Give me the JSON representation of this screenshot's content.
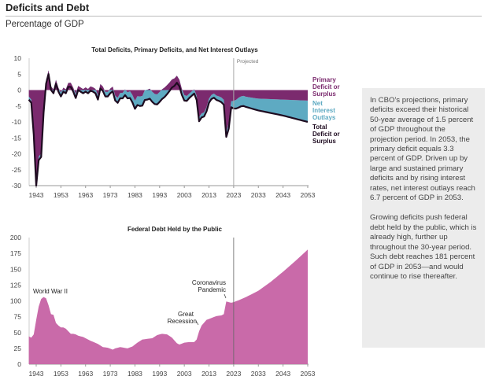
{
  "header": {
    "title": "Deficits and Debt",
    "subtitle": "Percentage of GDP"
  },
  "panel": {
    "paragraphs": [
      "In CBO's projections, primary deficits exceed their historical 50-year average of 1.5 percent of GDP throughout the projection period. In 2053, the primary deficit equals 3.3 percent of GDP. Driven up by large and sustained primary deficits and by rising interest rates, net interest outlays reach 6.7 percent of GDP in 2053.",
      "Growing deficits push federal debt held by the public, which is already high, further up throughout the 30-year period. Such debt reaches 181 percent of GDP in 2053—and would continue to rise thereafter."
    ]
  },
  "colors": {
    "primary": "#7b2a6e",
    "interest": "#5eaac2",
    "total": "#1e0b20",
    "debt": "#c96aa9"
  },
  "chart_data": [
    {
      "type": "area",
      "title": "Total Deficits, Primary Deficits, and Net Interest Outlays",
      "xlabel": "",
      "ylabel": "",
      "xlim": [
        1940,
        2053
      ],
      "ylim": [
        -30,
        10
      ],
      "xticks": [
        "1943",
        "1953",
        "1963",
        "1973",
        "1983",
        "1993",
        "2003",
        "2013",
        "2023",
        "2033",
        "2043",
        "2053"
      ],
      "yticks": [
        "10",
        "5",
        "0",
        "-5",
        "-10",
        "-15",
        "-20",
        "-25",
        "-30"
      ],
      "annotation": {
        "label": "Projected",
        "x": 2023
      },
      "legend": [
        "Primary Deficit or Surplus",
        "Net Interest Outlays",
        "Total Deficit or Surplus"
      ],
      "series": [
        {
          "name": "Total Deficit or Surplus",
          "x": [
            1940,
            1941,
            1942,
            1943,
            1944,
            1945,
            1946,
            1947,
            1948,
            1949,
            1950,
            1951,
            1952,
            1953,
            1954,
            1955,
            1956,
            1957,
            1958,
            1959,
            1960,
            1961,
            1962,
            1963,
            1964,
            1965,
            1966,
            1967,
            1968,
            1969,
            1970,
            1971,
            1972,
            1973,
            1974,
            1975,
            1976,
            1977,
            1978,
            1979,
            1980,
            1981,
            1982,
            1983,
            1984,
            1985,
            1986,
            1987,
            1988,
            1989,
            1990,
            1991,
            1992,
            1993,
            1994,
            1995,
            1996,
            1997,
            1998,
            1999,
            2000,
            2001,
            2002,
            2003,
            2004,
            2005,
            2006,
            2007,
            2008,
            2009,
            2010,
            2011,
            2012,
            2013,
            2014,
            2015,
            2016,
            2017,
            2018,
            2019,
            2020,
            2021,
            2022,
            2023,
            2024,
            2025,
            2026,
            2027,
            2028,
            2033,
            2043,
            2053
          ],
          "y": [
            -3,
            -4,
            -14,
            -30,
            -22,
            -21,
            -7,
            2,
            5,
            0,
            -1,
            2,
            -0.5,
            -2,
            -0.5,
            -1,
            1,
            1,
            -0.5,
            -2.5,
            0,
            -0.5,
            -1,
            -0.5,
            -1,
            -0.2,
            -0.5,
            -1,
            -3,
            0.5,
            -0.3,
            -2,
            -2,
            -1,
            -0.4,
            -3.3,
            -4,
            -2.6,
            -2.6,
            -1.6,
            -2.6,
            -2.5,
            -3.9,
            -5.9,
            -4.7,
            -5,
            -4.9,
            -3.1,
            -3,
            -2.7,
            -3.7,
            -4.4,
            -4.5,
            -3.7,
            -2.8,
            -2.2,
            -1.3,
            -0.3,
            0.8,
            1.3,
            2.3,
            1.2,
            -1.5,
            -3.3,
            -3.4,
            -2.5,
            -1.8,
            -1.1,
            -3.1,
            -9.8,
            -8.6,
            -8.3,
            -6.7,
            -4,
            -2.8,
            -2.4,
            -3.1,
            -3.4,
            -3.8,
            -4.6,
            -14.7,
            -12.1,
            -5.4,
            -5.8,
            -5.8,
            -5.5,
            -5.1,
            -5,
            -5.3,
            -6.4,
            -8,
            -10
          ]
        },
        {
          "name": "Net Interest Outlays",
          "x": [
            1940,
            1950,
            1960,
            1970,
            1975,
            1980,
            1985,
            1991,
            1995,
            2000,
            2005,
            2010,
            2015,
            2020,
            2022,
            2023,
            2025,
            2028,
            2033,
            2043,
            2053
          ],
          "y": [
            1,
            1.2,
            1.3,
            1.4,
            1.5,
            1.9,
            3,
            3.2,
            3,
            2.2,
            1.4,
            1.3,
            1.3,
            1.6,
            1.9,
            2.4,
            3.1,
            3.2,
            3.7,
            5,
            6.7
          ]
        }
      ]
    },
    {
      "type": "area",
      "title": "Federal Debt Held by the Public",
      "xlabel": "",
      "ylabel": "",
      "xlim": [
        1940,
        2053
      ],
      "ylim": [
        0,
        200
      ],
      "xticks": [
        "1943",
        "1953",
        "1963",
        "1973",
        "1983",
        "1993",
        "2003",
        "2013",
        "2023",
        "2033",
        "2043",
        "2053"
      ],
      "yticks": [
        "200",
        "175",
        "150",
        "125",
        "100",
        "75",
        "50",
        "25",
        "0"
      ],
      "annotations": [
        {
          "label": "World War II",
          "x": 1946,
          "y": 106
        },
        {
          "label": "Great Recession",
          "x": 2009,
          "y": 60
        },
        {
          "label": "Coronavirus Pandemic",
          "x": 2020,
          "y": 99
        }
      ],
      "series": [
        {
          "x": [
            1940,
            1941,
            1942,
            1943,
            1944,
            1945,
            1946,
            1947,
            1948,
            1949,
            1950,
            1951,
            1952,
            1953,
            1954,
            1955,
            1956,
            1957,
            1958,
            1959,
            1960,
            1962,
            1965,
            1968,
            1970,
            1972,
            1974,
            1975,
            1977,
            1980,
            1982,
            1984,
            1986,
            1988,
            1990,
            1992,
            1994,
            1996,
            1998,
            2000,
            2001,
            2003,
            2005,
            2007,
            2008,
            2009,
            2010,
            2012,
            2014,
            2016,
            2018,
            2019,
            2020,
            2021,
            2022,
            2023,
            2025,
            2028,
            2033,
            2038,
            2043,
            2048,
            2053
          ],
          "y": [
            44,
            42,
            47,
            70,
            91,
            103,
            106,
            104,
            93,
            79,
            78,
            65,
            61,
            58,
            58,
            56,
            52,
            48,
            48,
            47,
            45,
            43,
            37,
            32,
            27,
            26,
            23,
            25,
            27,
            25,
            28,
            34,
            39,
            40,
            41,
            46,
            48,
            47,
            42,
            33,
            31,
            34,
            35,
            35,
            39,
            52,
            61,
            70,
            73,
            76,
            77,
            79,
            99,
            98,
            97,
            98,
            101,
            106,
            116,
            130,
            146,
            163,
            181
          ]
        }
      ]
    }
  ]
}
